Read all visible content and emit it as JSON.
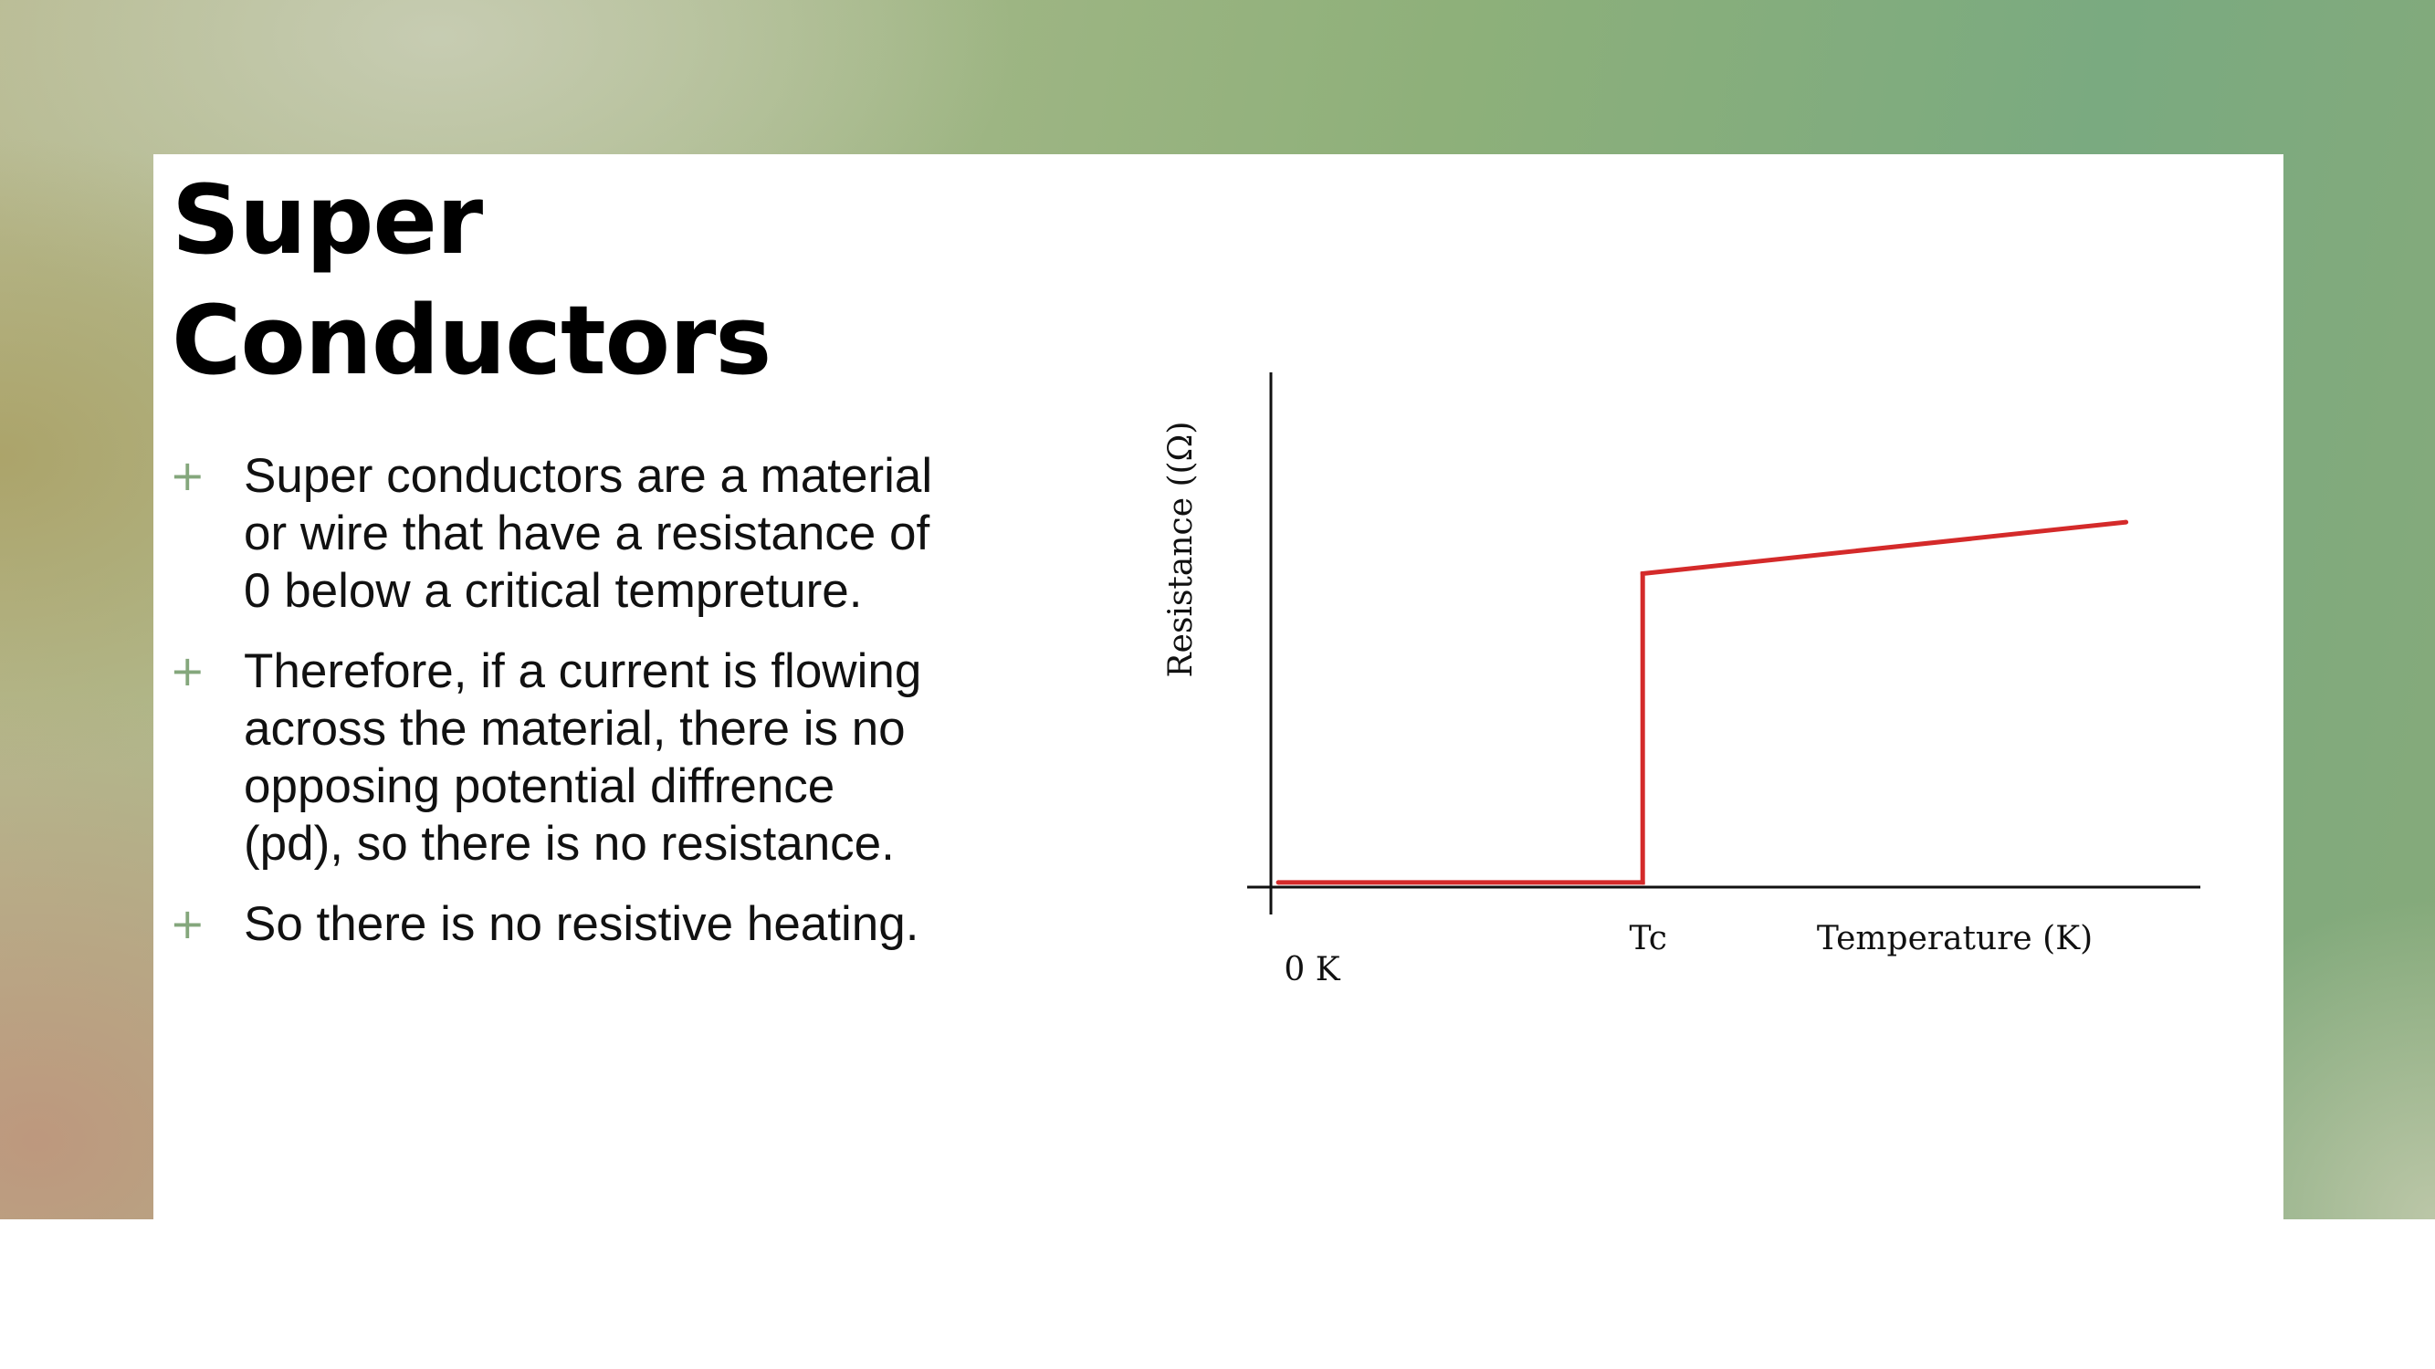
{
  "slide": {
    "title_line1": "Super",
    "title_line2": "Conductors",
    "bullet_marker": "+",
    "bullets": [
      "Super conductors are a material or wire that have a resistance of 0 below a critical tempreture.",
      "Therefore, if a current is flowing across the material, there is no opposing potential diffrence (pd), so there is no resistance.",
      "So there is no resistive heating."
    ]
  },
  "colors": {
    "curve": "#d42a2a",
    "bullet_marker": "#84a77c"
  },
  "chart_data": {
    "type": "line",
    "title": "",
    "xlabel": "Temperature (K)",
    "ylabel": "Resistance ((Ω)",
    "origin_label": "0 K",
    "x_tick_labels": [
      {
        "label": "Tc",
        "x": 1
      }
    ],
    "xlim": [
      0,
      2.5
    ],
    "ylim": [
      0,
      1.1
    ],
    "series": [
      {
        "values": [
          {
            "x": 0.02,
            "y": 0.01
          },
          {
            "x": 1.0,
            "y": 0.01
          },
          {
            "x": 1.0,
            "y": 0.67
          },
          {
            "x": 2.3,
            "y": 0.78
          }
        ]
      }
    ],
    "grid": false,
    "legend": "none"
  }
}
